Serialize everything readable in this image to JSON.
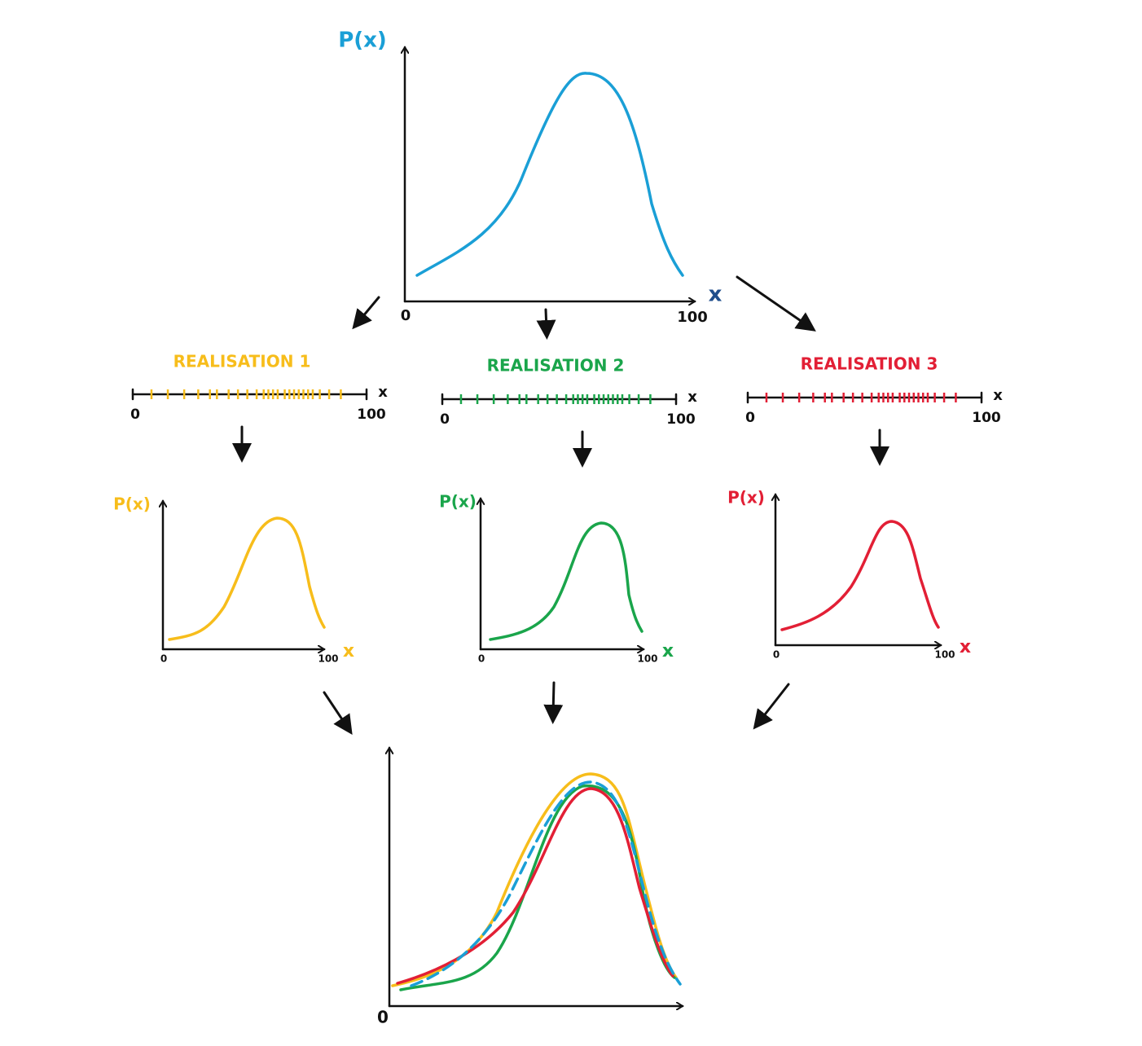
{
  "source": {
    "y_label": "P(x)",
    "x_label": "x",
    "x_min": 0,
    "x_max": 100
  },
  "realisations": [
    {
      "title": "REALISATION 1",
      "x_label": "x",
      "x_min": 0,
      "x_max": 100,
      "density": {
        "y_label": "P(x)",
        "x_label": "x",
        "x_min": 0,
        "x_max": 100
      }
    },
    {
      "title": "REALISATION 2",
      "x_label": "x",
      "x_min": 0,
      "x_max": 100,
      "density": {
        "y_label": "P(x)",
        "x_label": "x",
        "x_min": 0,
        "x_max": 100
      }
    },
    {
      "title": "REALISATION 3",
      "x_label": "x",
      "x_min": 0,
      "x_max": 100,
      "density": {
        "y_label": "P(x)",
        "x_label": "x",
        "x_min": 0,
        "x_max": 100
      }
    }
  ],
  "combined": {
    "x_min": 0
  }
}
